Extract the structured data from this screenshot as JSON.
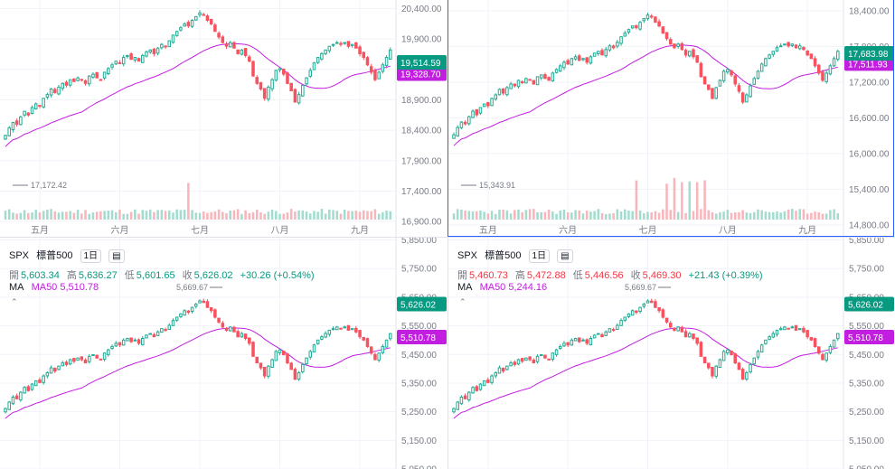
{
  "colors": {
    "up": "#22ab94",
    "down": "#f7525f",
    "ma": "#c21ee0",
    "grid": "#f0f3fa",
    "axis_text": "#787b86",
    "price_tag": "#089981",
    "ma_tag": "#c21ee0"
  },
  "panes": [
    {
      "id": "tl",
      "price_tag": "19,514.59",
      "ma_tag": "19,328.70",
      "low_marker": "17,172.42",
      "chart_data": {
        "type": "candlestick",
        "x_labels": [
          "五月",
          "六月",
          "七月",
          "八月",
          "九月"
        ],
        "y_ticks": [
          "20,400.00",
          "19,900.00",
          "19,400.00",
          "18,900.00",
          "18,400.00",
          "17,900.00",
          "17,400.00",
          "16,900.00"
        ],
        "ylim": [
          16650,
          20480
        ],
        "last": 19514.59,
        "ma_last": 19328.7,
        "low": 17172.42
      }
    },
    {
      "id": "tr",
      "price_tag": "17,683.98",
      "ma_tag": "17,511.93",
      "low_marker": "15,343.91",
      "chart_data": {
        "type": "candlestick",
        "x_labels": [
          "五月",
          "六月",
          "七月",
          "八月",
          "九月"
        ],
        "y_ticks": [
          "18,400.00",
          "17,800.00",
          "17,200.00",
          "16,600.00",
          "16,000.00",
          "15,400.00",
          "14,800.00"
        ],
        "ylim": [
          14600,
          18520
        ],
        "last": 17683.98,
        "ma_last": 17511.93,
        "low": 15343.91
      }
    },
    {
      "id": "bl",
      "header": {
        "symbol": "SPX",
        "name": "標普500",
        "interval": "1日",
        "open_label": "開",
        "open": "5,603.34",
        "high_label": "高",
        "high": "5,636.27",
        "low_label": "低",
        "low": "5,601.65",
        "close_label": "收",
        "close": "5,626.02",
        "change": "+30.26 (+0.54%)",
        "ma_label": "MA",
        "ma_name": "MA50 5,510.78"
      },
      "price_tag": "5,626.02",
      "ma_tag": "5,510.78",
      "high_marker": "5,669.67",
      "chart_data": {
        "type": "candlestick",
        "y_ticks": [
          "5,850.00",
          "5,750.00",
          "5,650.00",
          "5,550.00",
          "5,450.00",
          "5,350.00",
          "5,250.00",
          "5,150.00",
          "5,050.00"
        ],
        "ylim": [
          5050,
          5858
        ],
        "last": 5626.02,
        "ma_last": 5510.78,
        "high": 5669.67
      }
    },
    {
      "id": "br",
      "header": {
        "symbol": "SPX",
        "name": "標普500",
        "interval": "1日",
        "open_label": "開",
        "open": "5,460.73",
        "high_label": "高",
        "high": "5,472.88",
        "low_label": "低",
        "low": "5,446.56",
        "close_label": "收",
        "close": "5,469.30",
        "change": "+21.43 (+0.39%)",
        "ma_label": "MA",
        "ma_name": "MA50 5,244.16"
      },
      "price_tag": "5,626.02",
      "ma_tag": "5,510.78",
      "high_marker": "5,669.67",
      "chart_data": {
        "type": "candlestick",
        "y_ticks": [
          "5,850.00",
          "5,750.00",
          "5,650.00",
          "5,550.00",
          "5,450.00",
          "5,350.00",
          "5,250.00",
          "5,150.00",
          "5,050.00"
        ],
        "ylim": [
          5050,
          5858
        ],
        "last": 5626.02,
        "ma_last": 5510.78,
        "high": 5669.67
      }
    }
  ],
  "series_shape": {
    "closes_norm": [
      0.3,
      0.34,
      0.37,
      0.36,
      0.4,
      0.43,
      0.41,
      0.45,
      0.47,
      0.46,
      0.5,
      0.52,
      0.55,
      0.53,
      0.56,
      0.58,
      0.57,
      0.6,
      0.59,
      0.61,
      0.6,
      0.58,
      0.62,
      0.63,
      0.61,
      0.6,
      0.64,
      0.66,
      0.68,
      0.7,
      0.69,
      0.72,
      0.73,
      0.71,
      0.72,
      0.7,
      0.73,
      0.75,
      0.76,
      0.74,
      0.77,
      0.79,
      0.78,
      0.81,
      0.84,
      0.86,
      0.88,
      0.9,
      0.89,
      0.92,
      0.94,
      0.96,
      0.95,
      0.92,
      0.9,
      0.86,
      0.83,
      0.8,
      0.78,
      0.8,
      0.77,
      0.74,
      0.76,
      0.73,
      0.7,
      0.62,
      0.58,
      0.55,
      0.5,
      0.56,
      0.6,
      0.65,
      0.66,
      0.63,
      0.58,
      0.54,
      0.48,
      0.52,
      0.57,
      0.61,
      0.65,
      0.69,
      0.72,
      0.74,
      0.76,
      0.78,
      0.79,
      0.8,
      0.79,
      0.8,
      0.78,
      0.79,
      0.77,
      0.74,
      0.72,
      0.68,
      0.64,
      0.6,
      0.64,
      0.68,
      0.72,
      0.76
    ]
  }
}
